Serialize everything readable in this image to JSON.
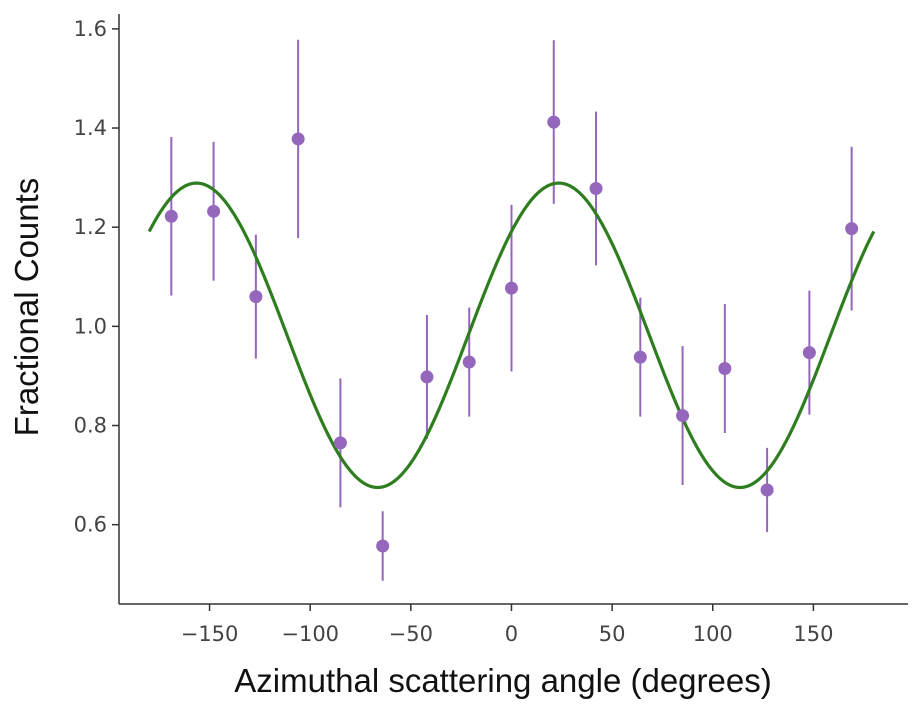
{
  "chart_data": {
    "type": "scatter",
    "title": "",
    "xlabel": "Azimuthal scattering angle (degrees)",
    "ylabel": "Fractional Counts",
    "xlim": [
      -195,
      197
    ],
    "ylim": [
      0.44,
      1.63
    ],
    "xticks": [
      -150,
      -100,
      -50,
      0,
      50,
      100,
      150
    ],
    "xtick_labels": [
      "−150",
      "−100",
      "−50",
      "0",
      "50",
      "100",
      "150"
    ],
    "yticks": [
      0.6,
      0.8,
      1.0,
      1.2,
      1.4,
      1.6
    ],
    "ytick_labels": [
      "0.6",
      "0.8",
      "1.0",
      "1.2",
      "1.4",
      "1.6"
    ],
    "grid": false,
    "series": [
      {
        "kind": "points_with_errorbars",
        "color": "#9467bd",
        "points": [
          {
            "x": -169,
            "y": 1.222,
            "err": 0.16
          },
          {
            "x": -148,
            "y": 1.232,
            "err": 0.14
          },
          {
            "x": -127,
            "y": 1.06,
            "err": 0.125
          },
          {
            "x": -106,
            "y": 1.378,
            "err": 0.2
          },
          {
            "x": -85,
            "y": 0.765,
            "err": 0.13
          },
          {
            "x": -64,
            "y": 0.557,
            "err": 0.07
          },
          {
            "x": -42,
            "y": 0.898,
            "err": 0.125
          },
          {
            "x": -21,
            "y": 0.928,
            "err": 0.11
          },
          {
            "x": 0,
            "y": 1.077,
            "err": 0.168
          },
          {
            "x": 21,
            "y": 1.412,
            "err": 0.165
          },
          {
            "x": 42,
            "y": 1.278,
            "err": 0.155
          },
          {
            "x": 64,
            "y": 0.938,
            "err": 0.12
          },
          {
            "x": 85,
            "y": 0.82,
            "err": 0.14
          },
          {
            "x": 106,
            "y": 0.915,
            "err": 0.13
          },
          {
            "x": 127,
            "y": 0.67,
            "err": 0.085
          },
          {
            "x": 148,
            "y": 0.947,
            "err": 0.125
          },
          {
            "x": 169,
            "y": 1.197,
            "err": 0.165
          }
        ]
      },
      {
        "kind": "fit_curve",
        "color": "#2e7d1f",
        "model": "cos2",
        "offset": 0.982,
        "amplitude": 0.307,
        "phase_deg": 23.5,
        "x_range": [
          -180,
          180
        ]
      }
    ]
  }
}
